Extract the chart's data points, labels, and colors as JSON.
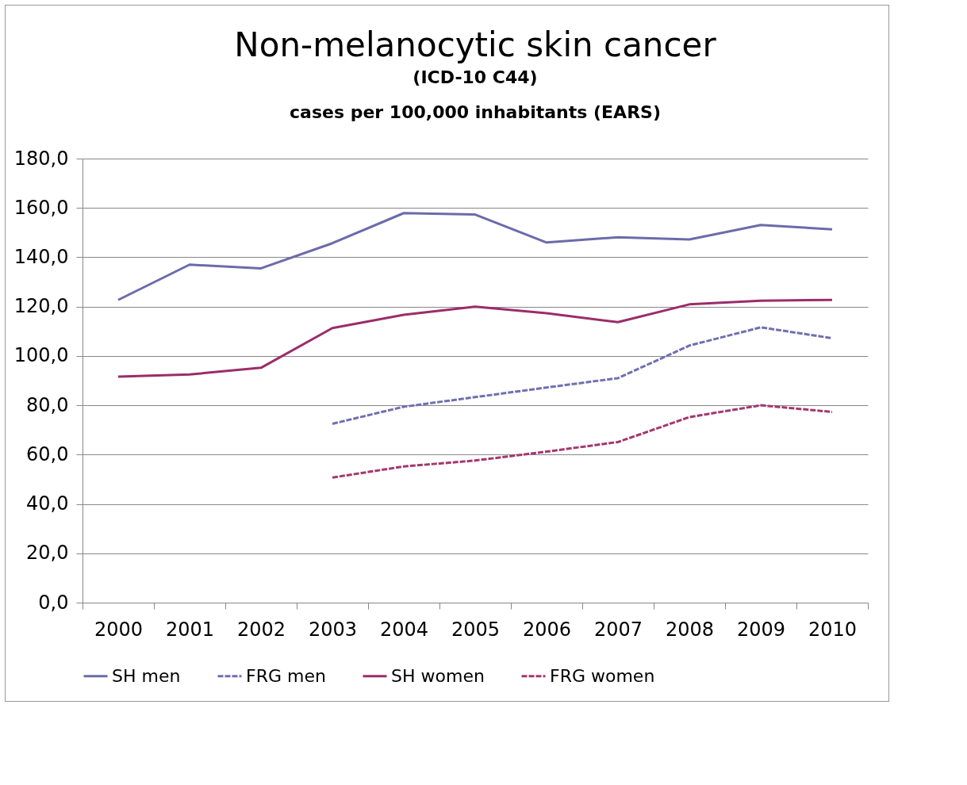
{
  "chart_data": {
    "type": "line",
    "title": "Non-melanocytic skin cancer",
    "subtitle": "(ICD-10 C44)\ncases per 100,000 inhabitants (EARS)",
    "categories": [
      "2000",
      "2001",
      "2002",
      "2003",
      "2004",
      "2005",
      "2006",
      "2007",
      "2008",
      "2009",
      "2010"
    ],
    "series": [
      {
        "name": "SH men",
        "color": "#6b6bab",
        "line_style": "solid",
        "values": [
          122.7,
          137.0,
          135.5,
          145.7,
          157.9,
          157.3,
          146.0,
          148.1,
          147.2,
          153.1,
          151.3
        ]
      },
      {
        "name": "FRG men",
        "color": "#7070b0",
        "line_style": "dashed",
        "values": [
          null,
          null,
          null,
          72.5,
          79.4,
          83.3,
          87.2,
          91.0,
          104.2,
          111.6,
          107.2
        ]
      },
      {
        "name": "SH women",
        "color": "#9b2d69",
        "line_style": "solid",
        "values": [
          91.6,
          92.5,
          95.2,
          111.3,
          116.7,
          120.0,
          117.3,
          113.7,
          120.9,
          122.4,
          122.7
        ]
      },
      {
        "name": "FRG women",
        "color": "#a3386f",
        "line_style": "dashed",
        "values": [
          null,
          null,
          null,
          50.7,
          55.2,
          57.6,
          61.2,
          65.1,
          75.2,
          80.0,
          77.3
        ]
      }
    ],
    "ylim": [
      0,
      180
    ],
    "yticks": [
      {
        "value": 0,
        "label": "0,0"
      },
      {
        "value": 20,
        "label": "20,0"
      },
      {
        "value": 40,
        "label": "40,0"
      },
      {
        "value": 60,
        "label": "60,0"
      },
      {
        "value": 80,
        "label": "80,0"
      },
      {
        "value": 100,
        "label": "100,0"
      },
      {
        "value": 120,
        "label": "120,0"
      },
      {
        "value": 140,
        "label": "140,0"
      },
      {
        "value": 160,
        "label": "160,0"
      },
      {
        "value": 180,
        "label": "180,0"
      }
    ],
    "grid": "y",
    "legend": "bottom",
    "marker": "none"
  }
}
